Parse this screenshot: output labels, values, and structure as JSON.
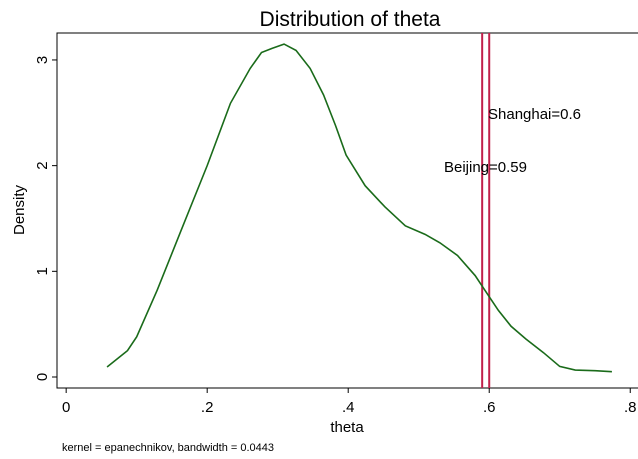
{
  "chart_data": {
    "type": "line",
    "title": "Distribution of theta",
    "x_label": "theta",
    "y_label": "Density",
    "note": "kernel = epanechnikov, bandwidth = 0.0443",
    "series": [
      {
        "color": "#1a6b1a",
        "x": [
          0.058,
          0.087,
          0.1,
          0.129,
          0.162,
          0.2,
          0.233,
          0.261,
          0.277,
          0.292,
          0.309,
          0.326,
          0.346,
          0.365,
          0.382,
          0.397,
          0.424,
          0.452,
          0.481,
          0.509,
          0.53,
          0.555,
          0.58,
          0.597,
          0.613,
          0.631,
          0.652,
          0.677,
          0.7,
          0.722,
          0.75,
          0.774
        ],
        "values": [
          0.095,
          0.25,
          0.38,
          0.82,
          1.37,
          2.0,
          2.59,
          2.92,
          3.07,
          3.11,
          3.15,
          3.09,
          2.92,
          2.67,
          2.38,
          2.1,
          1.81,
          1.61,
          1.43,
          1.35,
          1.27,
          1.15,
          0.96,
          0.79,
          0.63,
          0.48,
          0.36,
          0.23,
          0.1,
          0.066,
          0.06,
          0.05
        ]
      }
    ],
    "annotations": [
      {
        "text": "Shanghai=0.6",
        "x": 0.6
      },
      {
        "text": "Beijing=0.59",
        "x": 0.59
      }
    ],
    "annotation_color": "#c0204a",
    "xlim": [
      -0.013,
      0.811
    ],
    "ylim": [
      -0.104,
      3.255
    ],
    "xticks": [
      0,
      {
        "value": 0.2,
        "label": ".2"
      },
      {
        "value": 0.4,
        "label": ".4"
      },
      {
        "value": 0.6,
        "label": ".6"
      },
      {
        "value": 0.8,
        "label": ".8"
      }
    ],
    "yticks": [
      0,
      1,
      2,
      3
    ]
  }
}
